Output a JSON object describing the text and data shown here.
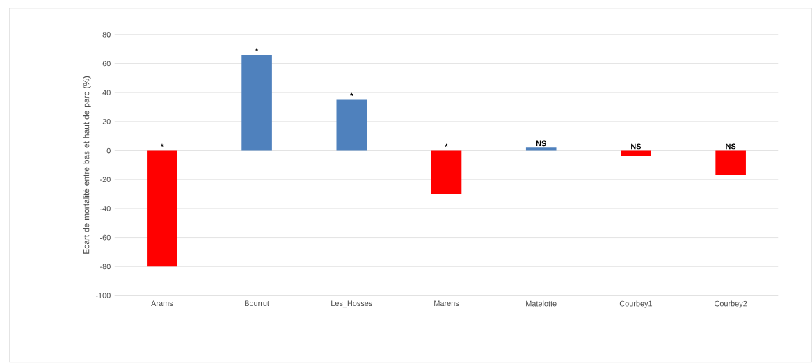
{
  "chart_data": {
    "type": "bar",
    "ylabel": "Ecart de mortalité  entre bas et haut de parc (%)",
    "categories": [
      "Arams",
      "Bourrut",
      "Les_Hosses",
      "Marens",
      "Matelotte",
      "Courbey1",
      "Courbey2"
    ],
    "values": [
      -80,
      66,
      35,
      -30,
      2,
      -4,
      -17
    ],
    "colors": [
      "#ff0000",
      "#4f81bd",
      "#4f81bd",
      "#ff0000",
      "#4f81bd",
      "#ff0000",
      "#ff0000"
    ],
    "ylim": [
      -100,
      80
    ],
    "yticks": [
      -100,
      -80,
      -60,
      -40,
      -20,
      0,
      20,
      40,
      60,
      80
    ],
    "grid": "y",
    "annotations": [
      {
        "text": "*",
        "x": "Arams",
        "y": 0
      },
      {
        "text": "*",
        "x": "Bourrut",
        "y": 66
      },
      {
        "text": "*",
        "x": "Les_Hosses",
        "y": 35
      },
      {
        "text": "*",
        "x": "Marens",
        "y": 0
      },
      {
        "text": "NS",
        "x": "Matelotte",
        "y": 2
      },
      {
        "text": "NS",
        "x": "Courbey1",
        "y": 0
      },
      {
        "text": "NS",
        "x": "Courbey2",
        "y": 0
      }
    ]
  }
}
